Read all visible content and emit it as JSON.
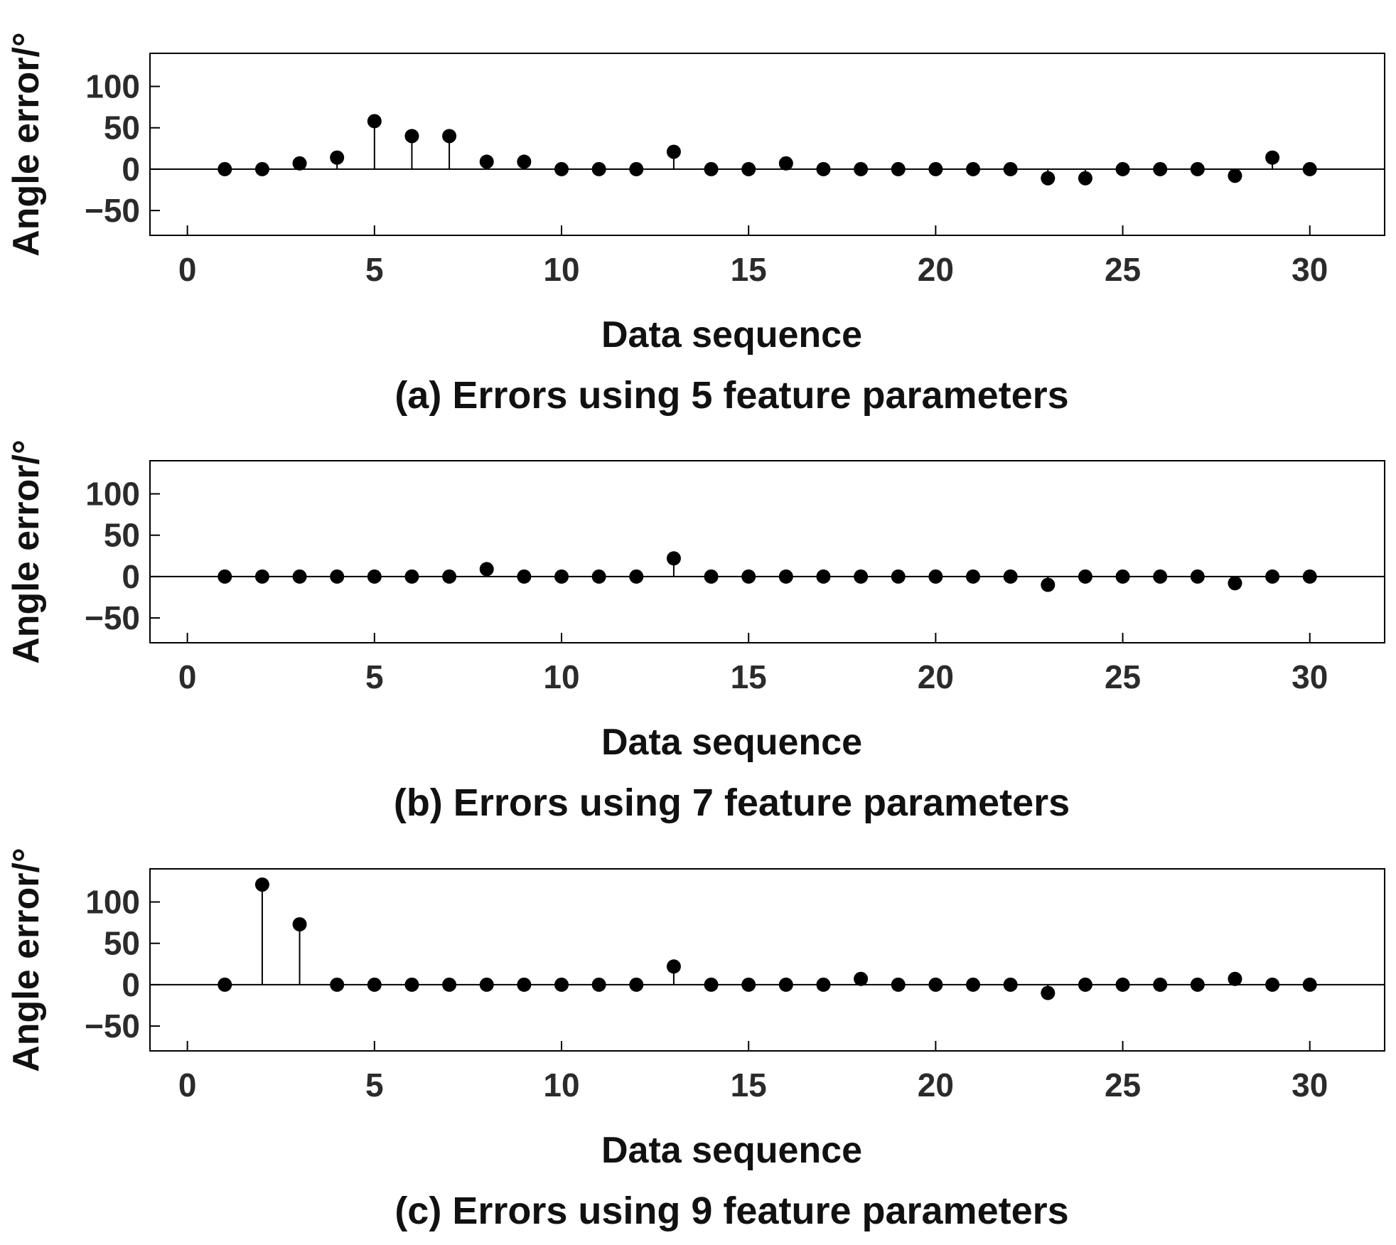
{
  "chart_data": [
    {
      "type": "stem",
      "xlabel": "Data sequence",
      "ylabel": "Angle error/°",
      "caption": "(a) Errors using 5 feature parameters",
      "xlim": [
        -1,
        32
      ],
      "ylim": [
        -80,
        140
      ],
      "xticks": [
        0,
        5,
        10,
        15,
        20,
        25,
        30
      ],
      "yticks": [
        -50,
        0,
        50,
        100
      ],
      "ytick_labels": [
        "−50",
        "0",
        "50",
        "100"
      ],
      "zero_line": true,
      "grid": false,
      "x": [
        1,
        2,
        3,
        4,
        5,
        6,
        7,
        8,
        9,
        10,
        11,
        12,
        13,
        14,
        15,
        16,
        17,
        18,
        19,
        20,
        21,
        22,
        23,
        24,
        25,
        26,
        27,
        28,
        29,
        30
      ],
      "values": [
        0,
        0,
        7,
        14,
        58,
        40,
        40,
        9,
        9,
        0,
        0,
        0,
        21,
        0,
        0,
        7,
        0,
        0,
        0,
        0,
        0,
        0,
        -11,
        -11,
        0,
        0,
        0,
        -8,
        14,
        0
      ]
    },
    {
      "type": "stem",
      "xlabel": "Data sequence",
      "ylabel": "Angle error/°",
      "caption": "(b) Errors using 7 feature parameters",
      "xlim": [
        -1,
        32
      ],
      "ylim": [
        -80,
        140
      ],
      "xticks": [
        0,
        5,
        10,
        15,
        20,
        25,
        30
      ],
      "yticks": [
        -50,
        0,
        50,
        100
      ],
      "ytick_labels": [
        "−50",
        "0",
        "50",
        "100"
      ],
      "zero_line": true,
      "grid": false,
      "x": [
        1,
        2,
        3,
        4,
        5,
        6,
        7,
        8,
        9,
        10,
        11,
        12,
        13,
        14,
        15,
        16,
        17,
        18,
        19,
        20,
        21,
        22,
        23,
        24,
        25,
        26,
        27,
        28,
        29,
        30
      ],
      "values": [
        0,
        0,
        0,
        0,
        0,
        0,
        0,
        9,
        0,
        0,
        0,
        0,
        22,
        0,
        0,
        0,
        0,
        0,
        0,
        0,
        0,
        0,
        -10,
        0,
        0,
        0,
        0,
        -8,
        0,
        0
      ]
    },
    {
      "type": "stem",
      "xlabel": "Data sequence",
      "ylabel": "Angle error/°",
      "caption": "(c) Errors using 9 feature parameters",
      "xlim": [
        -1,
        32
      ],
      "ylim": [
        -80,
        140
      ],
      "xticks": [
        0,
        5,
        10,
        15,
        20,
        25,
        30
      ],
      "yticks": [
        -50,
        0,
        50,
        100
      ],
      "ytick_labels": [
        "−50",
        "0",
        "50",
        "100"
      ],
      "zero_line": true,
      "grid": false,
      "x": [
        1,
        2,
        3,
        4,
        5,
        6,
        7,
        8,
        9,
        10,
        11,
        12,
        13,
        14,
        15,
        16,
        17,
        18,
        19,
        20,
        21,
        22,
        23,
        24,
        25,
        26,
        27,
        28,
        29,
        30
      ],
      "values": [
        0,
        121,
        73,
        0,
        0,
        0,
        0,
        0,
        0,
        0,
        0,
        0,
        22,
        0,
        0,
        0,
        0,
        7,
        0,
        0,
        0,
        0,
        -10,
        0,
        0,
        0,
        0,
        7,
        0,
        0
      ]
    }
  ],
  "colors": {
    "marker": "#000000",
    "axes": "#000000",
    "tick_text": "#2b2b2b",
    "background": "#ffffff"
  }
}
